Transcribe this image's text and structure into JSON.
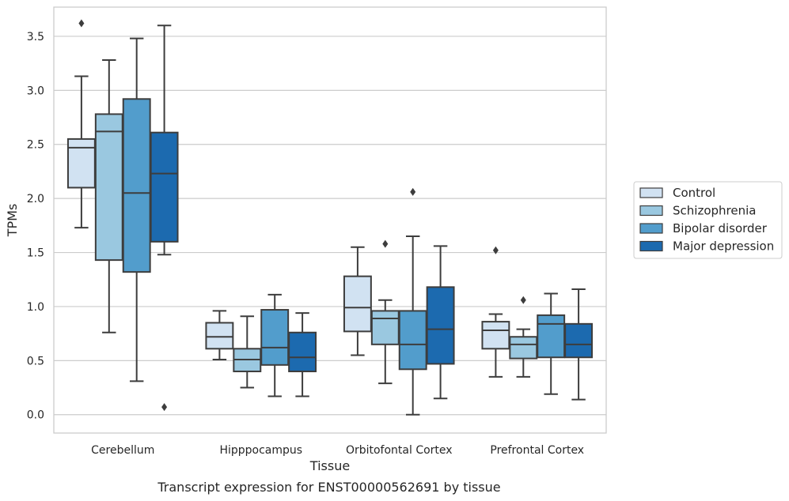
{
  "caption": "Transcript expression for ENST00000562691 by tissue",
  "chart_data": {
    "type": "box",
    "xlabel": "Tissue",
    "ylabel": "TPMs",
    "ylim": [
      -0.17,
      3.77
    ],
    "yticks": [
      "0.0",
      "0.5",
      "1.0",
      "1.5",
      "2.0",
      "2.5",
      "3.0",
      "3.5"
    ],
    "grid": "horizontal",
    "legend_position": "right",
    "categories": [
      "Cerebellum",
      "Hipppocampus",
      "Orbitofontal Cortex",
      "Prefrontal Cortex"
    ],
    "series": [
      {
        "name": "Control",
        "color": "#d1e2f2",
        "boxes": [
          {
            "whisker_low": 1.73,
            "q1": 2.1,
            "median": 2.47,
            "q3": 2.55,
            "whisker_high": 3.13,
            "outliers": [
              3.62
            ]
          },
          {
            "whisker_low": 0.51,
            "q1": 0.61,
            "median": 0.72,
            "q3": 0.85,
            "whisker_high": 0.96,
            "outliers": []
          },
          {
            "whisker_low": 0.55,
            "q1": 0.77,
            "median": 0.99,
            "q3": 1.28,
            "whisker_high": 1.55,
            "outliers": []
          },
          {
            "whisker_low": 0.35,
            "q1": 0.61,
            "median": 0.78,
            "q3": 0.86,
            "whisker_high": 0.93,
            "outliers": [
              1.52
            ]
          }
        ]
      },
      {
        "name": "Schizophrenia",
        "color": "#9ac8e0",
        "boxes": [
          {
            "whisker_low": 0.76,
            "q1": 1.43,
            "median": 2.62,
            "q3": 2.78,
            "whisker_high": 3.28,
            "outliers": []
          },
          {
            "whisker_low": 0.25,
            "q1": 0.4,
            "median": 0.51,
            "q3": 0.61,
            "whisker_high": 0.91,
            "outliers": []
          },
          {
            "whisker_low": 0.29,
            "q1": 0.65,
            "median": 0.89,
            "q3": 0.96,
            "whisker_high": 1.06,
            "outliers": [
              1.58
            ]
          },
          {
            "whisker_low": 0.35,
            "q1": 0.52,
            "median": 0.65,
            "q3": 0.72,
            "whisker_high": 0.79,
            "outliers": [
              1.06
            ]
          }
        ]
      },
      {
        "name": "Bipolar disorder",
        "color": "#529dcc",
        "boxes": [
          {
            "whisker_low": 0.31,
            "q1": 1.32,
            "median": 2.05,
            "q3": 2.92,
            "whisker_high": 3.48,
            "outliers": []
          },
          {
            "whisker_low": 0.17,
            "q1": 0.46,
            "median": 0.62,
            "q3": 0.97,
            "whisker_high": 1.11,
            "outliers": []
          },
          {
            "whisker_low": 0.0,
            "q1": 0.42,
            "median": 0.65,
            "q3": 0.96,
            "whisker_high": 1.65,
            "outliers": [
              2.06
            ]
          },
          {
            "whisker_low": 0.19,
            "q1": 0.53,
            "median": 0.84,
            "q3": 0.92,
            "whisker_high": 1.12,
            "outliers": []
          }
        ]
      },
      {
        "name": "Major depression",
        "color": "#1c6aaf",
        "boxes": [
          {
            "whisker_low": 1.48,
            "q1": 1.6,
            "median": 2.23,
            "q3": 2.61,
            "whisker_high": 3.6,
            "outliers": [
              0.07
            ]
          },
          {
            "whisker_low": 0.17,
            "q1": 0.4,
            "median": 0.53,
            "q3": 0.76,
            "whisker_high": 0.94,
            "outliers": []
          },
          {
            "whisker_low": 0.15,
            "q1": 0.47,
            "median": 0.79,
            "q3": 1.18,
            "whisker_high": 1.56,
            "outliers": []
          },
          {
            "whisker_low": 0.14,
            "q1": 0.53,
            "median": 0.65,
            "q3": 0.84,
            "whisker_high": 1.16,
            "outliers": []
          }
        ]
      }
    ]
  }
}
